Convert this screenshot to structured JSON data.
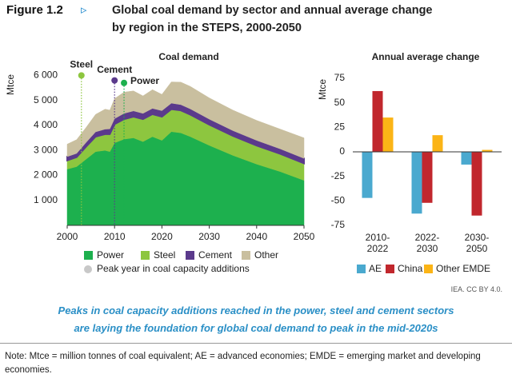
{
  "header": {
    "figure_label": "Figure 1.2",
    "title": [
      "Global coal demand by sector and annual average change",
      "by region in the STEPS, 2000-2050"
    ]
  },
  "chart_data": [
    {
      "type": "area",
      "title": "Coal demand",
      "y_label": "Mtce",
      "x": [
        2000,
        2002,
        2004,
        2006,
        2008,
        2009,
        2010,
        2012,
        2014,
        2016,
        2018,
        2020,
        2022,
        2024,
        2026,
        2030,
        2035,
        2040,
        2045,
        2050
      ],
      "series": [
        {
          "name": "Power",
          "color": "#1db04e",
          "values": [
            2250,
            2350,
            2650,
            2950,
            3000,
            2950,
            3300,
            3450,
            3500,
            3350,
            3550,
            3400,
            3750,
            3700,
            3550,
            3200,
            2800,
            2450,
            2150,
            1800
          ]
        },
        {
          "name": "Steel",
          "color": "#8dc63f",
          "values": [
            350,
            380,
            500,
            600,
            650,
            700,
            750,
            800,
            850,
            900,
            900,
            950,
            900,
            900,
            880,
            830,
            780,
            740,
            710,
            680
          ]
        },
        {
          "name": "Cement",
          "color": "#5b3a8c",
          "values": [
            150,
            150,
            170,
            190,
            200,
            210,
            220,
            230,
            230,
            230,
            230,
            240,
            240,
            230,
            230,
            220,
            210,
            210,
            200,
            200
          ]
        },
        {
          "name": "Other",
          "color": "#c9bf9f",
          "values": [
            500,
            550,
            600,
            700,
            800,
            750,
            800,
            850,
            800,
            700,
            750,
            650,
            850,
            900,
            900,
            850,
            820,
            800,
            790,
            820
          ]
        }
      ],
      "xlim": [
        2000,
        2050
      ],
      "xticks": [
        2000,
        2010,
        2020,
        2030,
        2040,
        2050
      ],
      "ylim": [
        0,
        6300
      ],
      "yticks": [
        {
          "value": 1000,
          "label": "1 000"
        },
        {
          "value": 2000,
          "label": "2 000"
        },
        {
          "value": 3000,
          "label": "3 000"
        },
        {
          "value": 4000,
          "label": "4 000"
        },
        {
          "value": 5000,
          "label": "5 000"
        },
        {
          "value": 6000,
          "label": "6 000"
        }
      ],
      "peaks": [
        {
          "name": "Steel",
          "x": 2003,
          "y": 6000,
          "color": "#8dc63f"
        },
        {
          "name": "Cement",
          "x": 2010,
          "y": 5800,
          "color": "#5b3a8c"
        },
        {
          "name": "Power",
          "x": 2012,
          "y": 5700,
          "color": "#1db04e"
        }
      ],
      "peak_legend": "Peak year in coal capacity additions",
      "peak_legend_color": "#c8c8c8"
    },
    {
      "type": "bar",
      "title": "Annual average change",
      "y_label": "Mtce",
      "categories": [
        "2010-2022",
        "2022-2030",
        "2030-2050"
      ],
      "series": [
        {
          "name": "AE",
          "color": "#4aa9cf",
          "values": [
            -47,
            -63,
            -13
          ]
        },
        {
          "name": "China",
          "color": "#c1272d",
          "values": [
            62,
            -52,
            -65
          ]
        },
        {
          "name": "Other EMDE",
          "color": "#fbb416",
          "values": [
            35,
            17,
            2
          ]
        }
      ],
      "ylim": [
        -75,
        75
      ],
      "yticks": [
        -75,
        -50,
        -25,
        0,
        25,
        50,
        75
      ]
    }
  ],
  "credit": "IEA. CC BY 4.0.",
  "caption": [
    "Peaks in coal capacity additions reached in the power, steel and cement sectors",
    "are laying the foundation for global coal demand to peak in the mid-2020s"
  ],
  "note": "Note: Mtce = million tonnes of coal equivalent; AE = advanced economies; EMDE = emerging market and developing economies."
}
